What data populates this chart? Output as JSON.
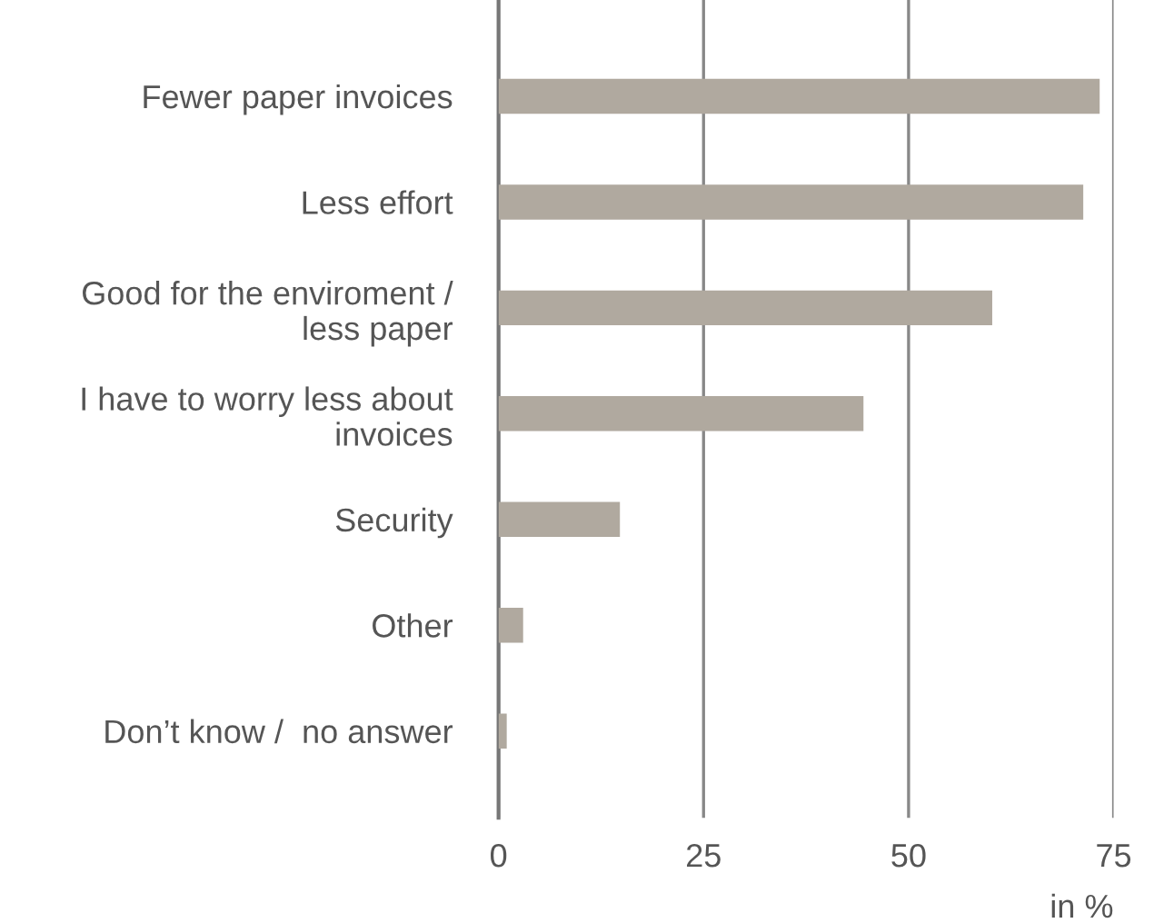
{
  "chart_data": {
    "type": "bar",
    "orientation": "horizontal",
    "categories": [
      "Fewer paper invoices",
      "Less effort",
      "Good for the enviroment /\nless paper",
      "I have to worry less about\ninvoices",
      "Security",
      "Other",
      "Don’t know /  no answer"
    ],
    "values": [
      73.3,
      71.3,
      60.2,
      44.5,
      14.8,
      3.0,
      1.0
    ],
    "color": "#b0a99f",
    "xlim": [
      0,
      75
    ],
    "xticks": [
      0,
      25,
      50,
      75
    ],
    "xlabel": "in %",
    "grid": "x",
    "legend": false
  }
}
